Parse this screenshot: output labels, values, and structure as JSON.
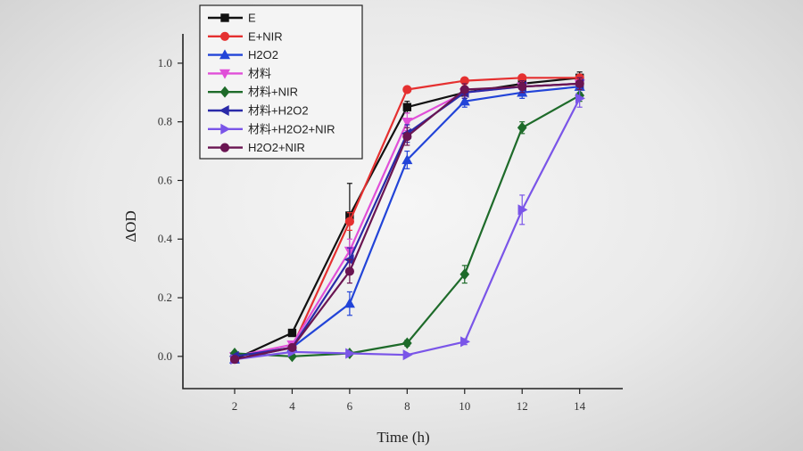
{
  "chart_data": {
    "type": "line",
    "xlabel": "Time (h)",
    "ylabel": "ΔOD",
    "xlim": [
      0.2,
      15.5
    ],
    "ylim": [
      -0.11,
      1.1
    ],
    "x_ticks": [
      2,
      4,
      6,
      8,
      10,
      12,
      14
    ],
    "x_tick_labels": [
      "2",
      "4",
      "6",
      "8",
      "10",
      "12",
      "14"
    ],
    "y_ticks": [
      0.0,
      0.2,
      0.4,
      0.6,
      0.8,
      1.0
    ],
    "y_tick_labels": [
      "0.0",
      "0.2",
      "0.4",
      "0.6",
      "0.8",
      "1.0"
    ],
    "legend_position": "top-left",
    "x": [
      2,
      4,
      6,
      8,
      10,
      12,
      14
    ],
    "series": [
      {
        "name": "E",
        "color": "#111111",
        "marker": "square",
        "values": [
          -0.01,
          0.08,
          0.48,
          0.85,
          0.9,
          0.93,
          0.95
        ],
        "errors": [
          0,
          0,
          0.11,
          0.02,
          0.02,
          0.02,
          0.02
        ]
      },
      {
        "name": "E+NIR",
        "color": "#e53030",
        "marker": "circle",
        "values": [
          0.0,
          0.03,
          0.46,
          0.91,
          0.94,
          0.95,
          0.95
        ],
        "errors": [
          0,
          0,
          0.03,
          0.01,
          0.01,
          0.01,
          0.01
        ]
      },
      {
        "name": "H2O2",
        "color": "#2244d8",
        "marker": "triangle-up",
        "values": [
          -0.01,
          0.03,
          0.18,
          0.67,
          0.87,
          0.9,
          0.92
        ],
        "errors": [
          0,
          0,
          0.04,
          0.03,
          0.02,
          0.02,
          0.02
        ]
      },
      {
        "name": "材料",
        "color": "#e04fd8",
        "marker": "triangle-down",
        "values": [
          0.0,
          0.04,
          0.36,
          0.8,
          0.9,
          0.92,
          0.93
        ],
        "errors": [
          0,
          0,
          0.04,
          0.03,
          0.02,
          0.02,
          0.02
        ]
      },
      {
        "name": "材料+NIR",
        "color": "#1e6b2a",
        "marker": "diamond",
        "values": [
          0.01,
          0.0,
          0.01,
          0.045,
          0.28,
          0.78,
          0.89
        ],
        "errors": [
          0,
          0,
          0,
          0.01,
          0.03,
          0.02,
          0.02
        ]
      },
      {
        "name": "材料+H2O2",
        "color": "#2a2aa8",
        "marker": "triangle-left",
        "values": [
          0.0,
          0.03,
          0.33,
          0.76,
          0.9,
          0.92,
          0.93
        ],
        "errors": [
          0,
          0,
          0.04,
          0.03,
          0.02,
          0.02,
          0.02
        ]
      },
      {
        "name": "材料+H2O2+NIR",
        "color": "#7a55e8",
        "marker": "triangle-right",
        "values": [
          -0.01,
          0.015,
          0.01,
          0.005,
          0.05,
          0.5,
          0.88
        ],
        "errors": [
          0,
          0,
          0,
          0,
          0.01,
          0.05,
          0.03
        ]
      },
      {
        "name": "H2O2+NIR",
        "color": "#6a1552",
        "marker": "circle",
        "values": [
          -0.01,
          0.03,
          0.29,
          0.75,
          0.91,
          0.92,
          0.93
        ],
        "errors": [
          0,
          0,
          0.04,
          0.03,
          0.02,
          0.02,
          0.02
        ]
      }
    ]
  }
}
